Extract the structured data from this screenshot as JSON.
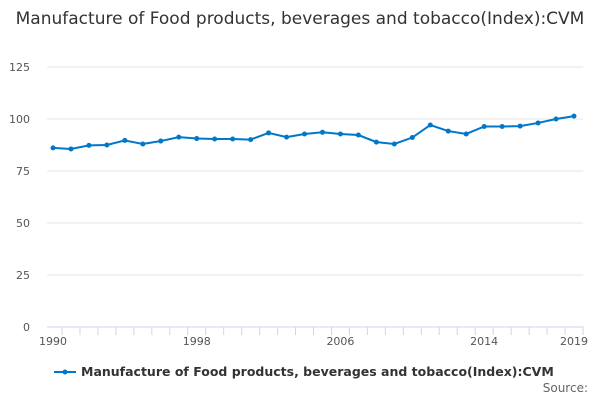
{
  "chart_data": {
    "type": "line",
    "title": "Manufacture of Food products, beverages and tobacco(Index):CVM",
    "xlabel": "",
    "ylabel": "",
    "ylim": [
      0,
      125
    ],
    "yticks": [
      0,
      25,
      50,
      75,
      100,
      125
    ],
    "xticks": [
      1990,
      1998,
      2006,
      2014,
      2019
    ],
    "x": [
      1990,
      1991,
      1992,
      1993,
      1994,
      1995,
      1996,
      1997,
      1998,
      1999,
      2000,
      2001,
      2002,
      2003,
      2004,
      2005,
      2006,
      2007,
      2008,
      2009,
      2010,
      2011,
      2012,
      2013,
      2014,
      2015,
      2016,
      2017,
      2018,
      2019
    ],
    "series": [
      {
        "name": "Manufacture of Food products, beverages and tobacco(Index):CVM",
        "color": "#0077c8",
        "values": [
          86.1,
          85.6,
          87.3,
          87.5,
          89.7,
          88.0,
          89.4,
          91.3,
          90.6,
          90.4,
          90.4,
          90.1,
          93.3,
          91.3,
          92.8,
          93.6,
          92.8,
          92.3,
          88.9,
          88.0,
          91.1,
          97.1,
          94.2,
          92.8,
          96.4,
          96.4,
          96.6,
          98.1,
          100.0,
          101.4
        ]
      }
    ],
    "grid": true,
    "legend_position": "bottom"
  },
  "credit": "Source:"
}
